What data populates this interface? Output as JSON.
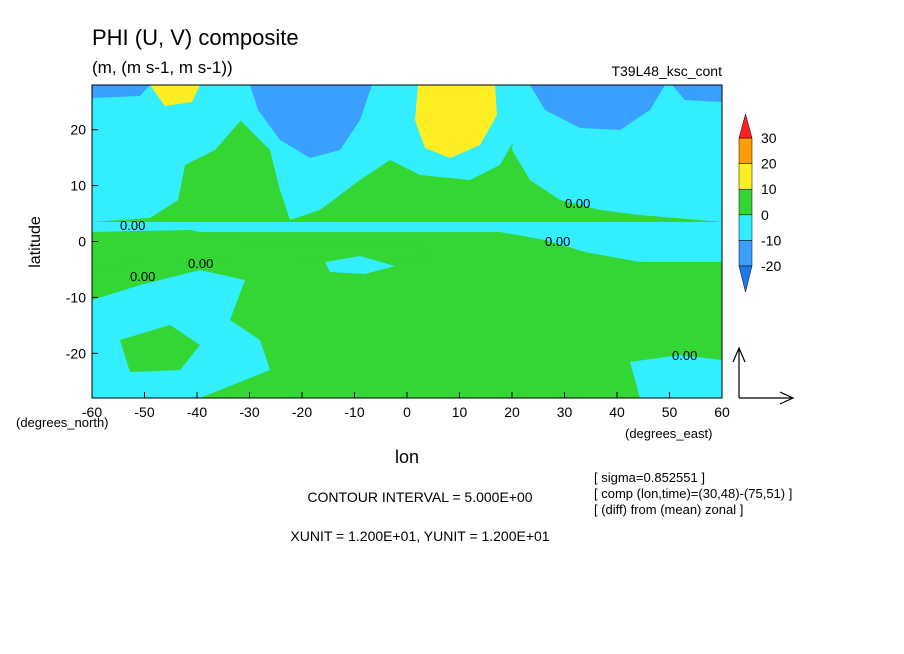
{
  "chart_data": {
    "type": "contour",
    "title": "PHI (U, V) composite",
    "subtitle": "(m, (m s-1, m s-1))",
    "run_label": "T39L48_ksc_cont",
    "xlabel": "lon",
    "ylabel": "latitude",
    "xunit_label": "(degrees_east)",
    "yunit_label": "(degrees_north)",
    "xlim": [
      -60,
      60
    ],
    "ylim": [
      -28,
      28
    ],
    "xticks": [
      -60,
      -50,
      -40,
      -30,
      -20,
      -10,
      0,
      10,
      20,
      30,
      40,
      50,
      60
    ],
    "yticks": [
      -20,
      -10,
      0,
      10,
      20
    ],
    "levels": [
      -20,
      -10,
      0,
      10,
      20,
      30
    ],
    "colors": [
      "#1e78f0",
      "#3aa0ff",
      "#33eeff",
      "#33d633",
      "#ffee22",
      "#ff9d00",
      "#ff2020"
    ],
    "contour_labels": [
      "0.00",
      "0.00",
      "0.00",
      "0.00",
      "0.00",
      "0.00"
    ],
    "notes": [
      "[ sigma=0.852551 ]",
      "[ comp (lon,time)=(30,48)-(75,51) ]",
      "[ (diff) from (mean) zonal ]"
    ],
    "contour_interval": "CONTOUR INTERVAL = 5.000E+00",
    "units_text": "XUNIT = 1.200E+01, YUNIT = 1.200E+01"
  }
}
